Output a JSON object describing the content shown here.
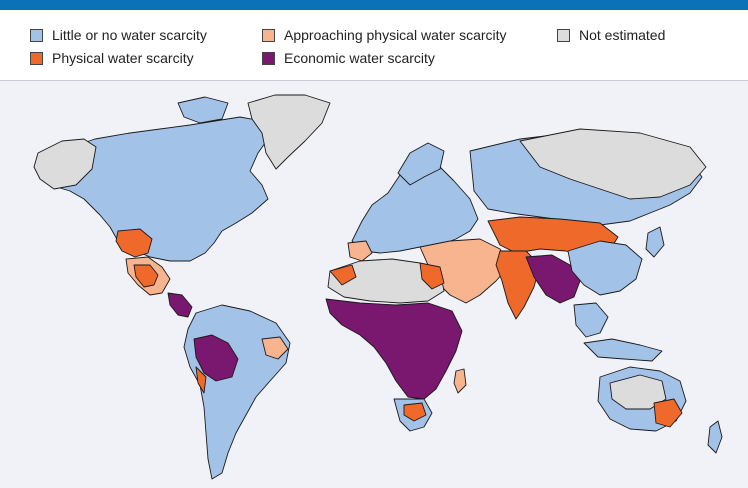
{
  "legend": {
    "items": [
      {
        "label": "Little or no water scarcity",
        "color": "#a3c2e8"
      },
      {
        "label": "Approaching physical water scarcity",
        "color": "#f8b48f"
      },
      {
        "label": "Not estimated",
        "color": "#dcdcdc"
      },
      {
        "label": "Physical water scarcity",
        "color": "#ef6a2a"
      },
      {
        "label": "Economic water scarcity",
        "color": "#7a176e"
      }
    ]
  },
  "colors": {
    "header_bar": "#0a73b8",
    "background": "#f0f2f7",
    "outline": "#1a1a1a"
  }
}
